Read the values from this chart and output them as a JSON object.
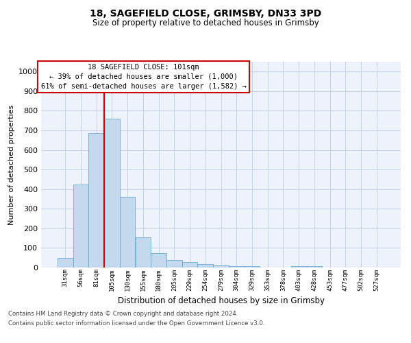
{
  "title1": "18, SAGEFIELD CLOSE, GRIMSBY, DN33 3PD",
  "title2": "Size of property relative to detached houses in Grimsby",
  "xlabel": "Distribution of detached houses by size in Grimsby",
  "ylabel": "Number of detached properties",
  "categories": [
    "31sqm",
    "56sqm",
    "81sqm",
    "105sqm",
    "130sqm",
    "155sqm",
    "180sqm",
    "205sqm",
    "229sqm",
    "254sqm",
    "279sqm",
    "304sqm",
    "329sqm",
    "353sqm",
    "378sqm",
    "403sqm",
    "428sqm",
    "453sqm",
    "477sqm",
    "502sqm",
    "527sqm"
  ],
  "values": [
    50,
    425,
    685,
    760,
    360,
    155,
    75,
    40,
    28,
    18,
    15,
    8,
    8,
    0,
    0,
    8,
    8,
    0,
    0,
    0,
    0
  ],
  "bar_color": "#c5d9ee",
  "bar_edge_color": "#6aaad4",
  "grid_color": "#c8d4e8",
  "background_color": "#eef2fa",
  "red_line_bar_index": 3,
  "annotation_line1": "18 SAGEFIELD CLOSE: 101sqm",
  "annotation_line2": "← 39% of detached houses are smaller (1,000)",
  "annotation_line3": "61% of semi-detached houses are larger (1,582) →",
  "ylim": [
    0,
    1050
  ],
  "yticks": [
    0,
    100,
    200,
    300,
    400,
    500,
    600,
    700,
    800,
    900,
    1000
  ],
  "footnote1": "Contains HM Land Registry data © Crown copyright and database right 2024.",
  "footnote2": "Contains public sector information licensed under the Open Government Licence v3.0."
}
